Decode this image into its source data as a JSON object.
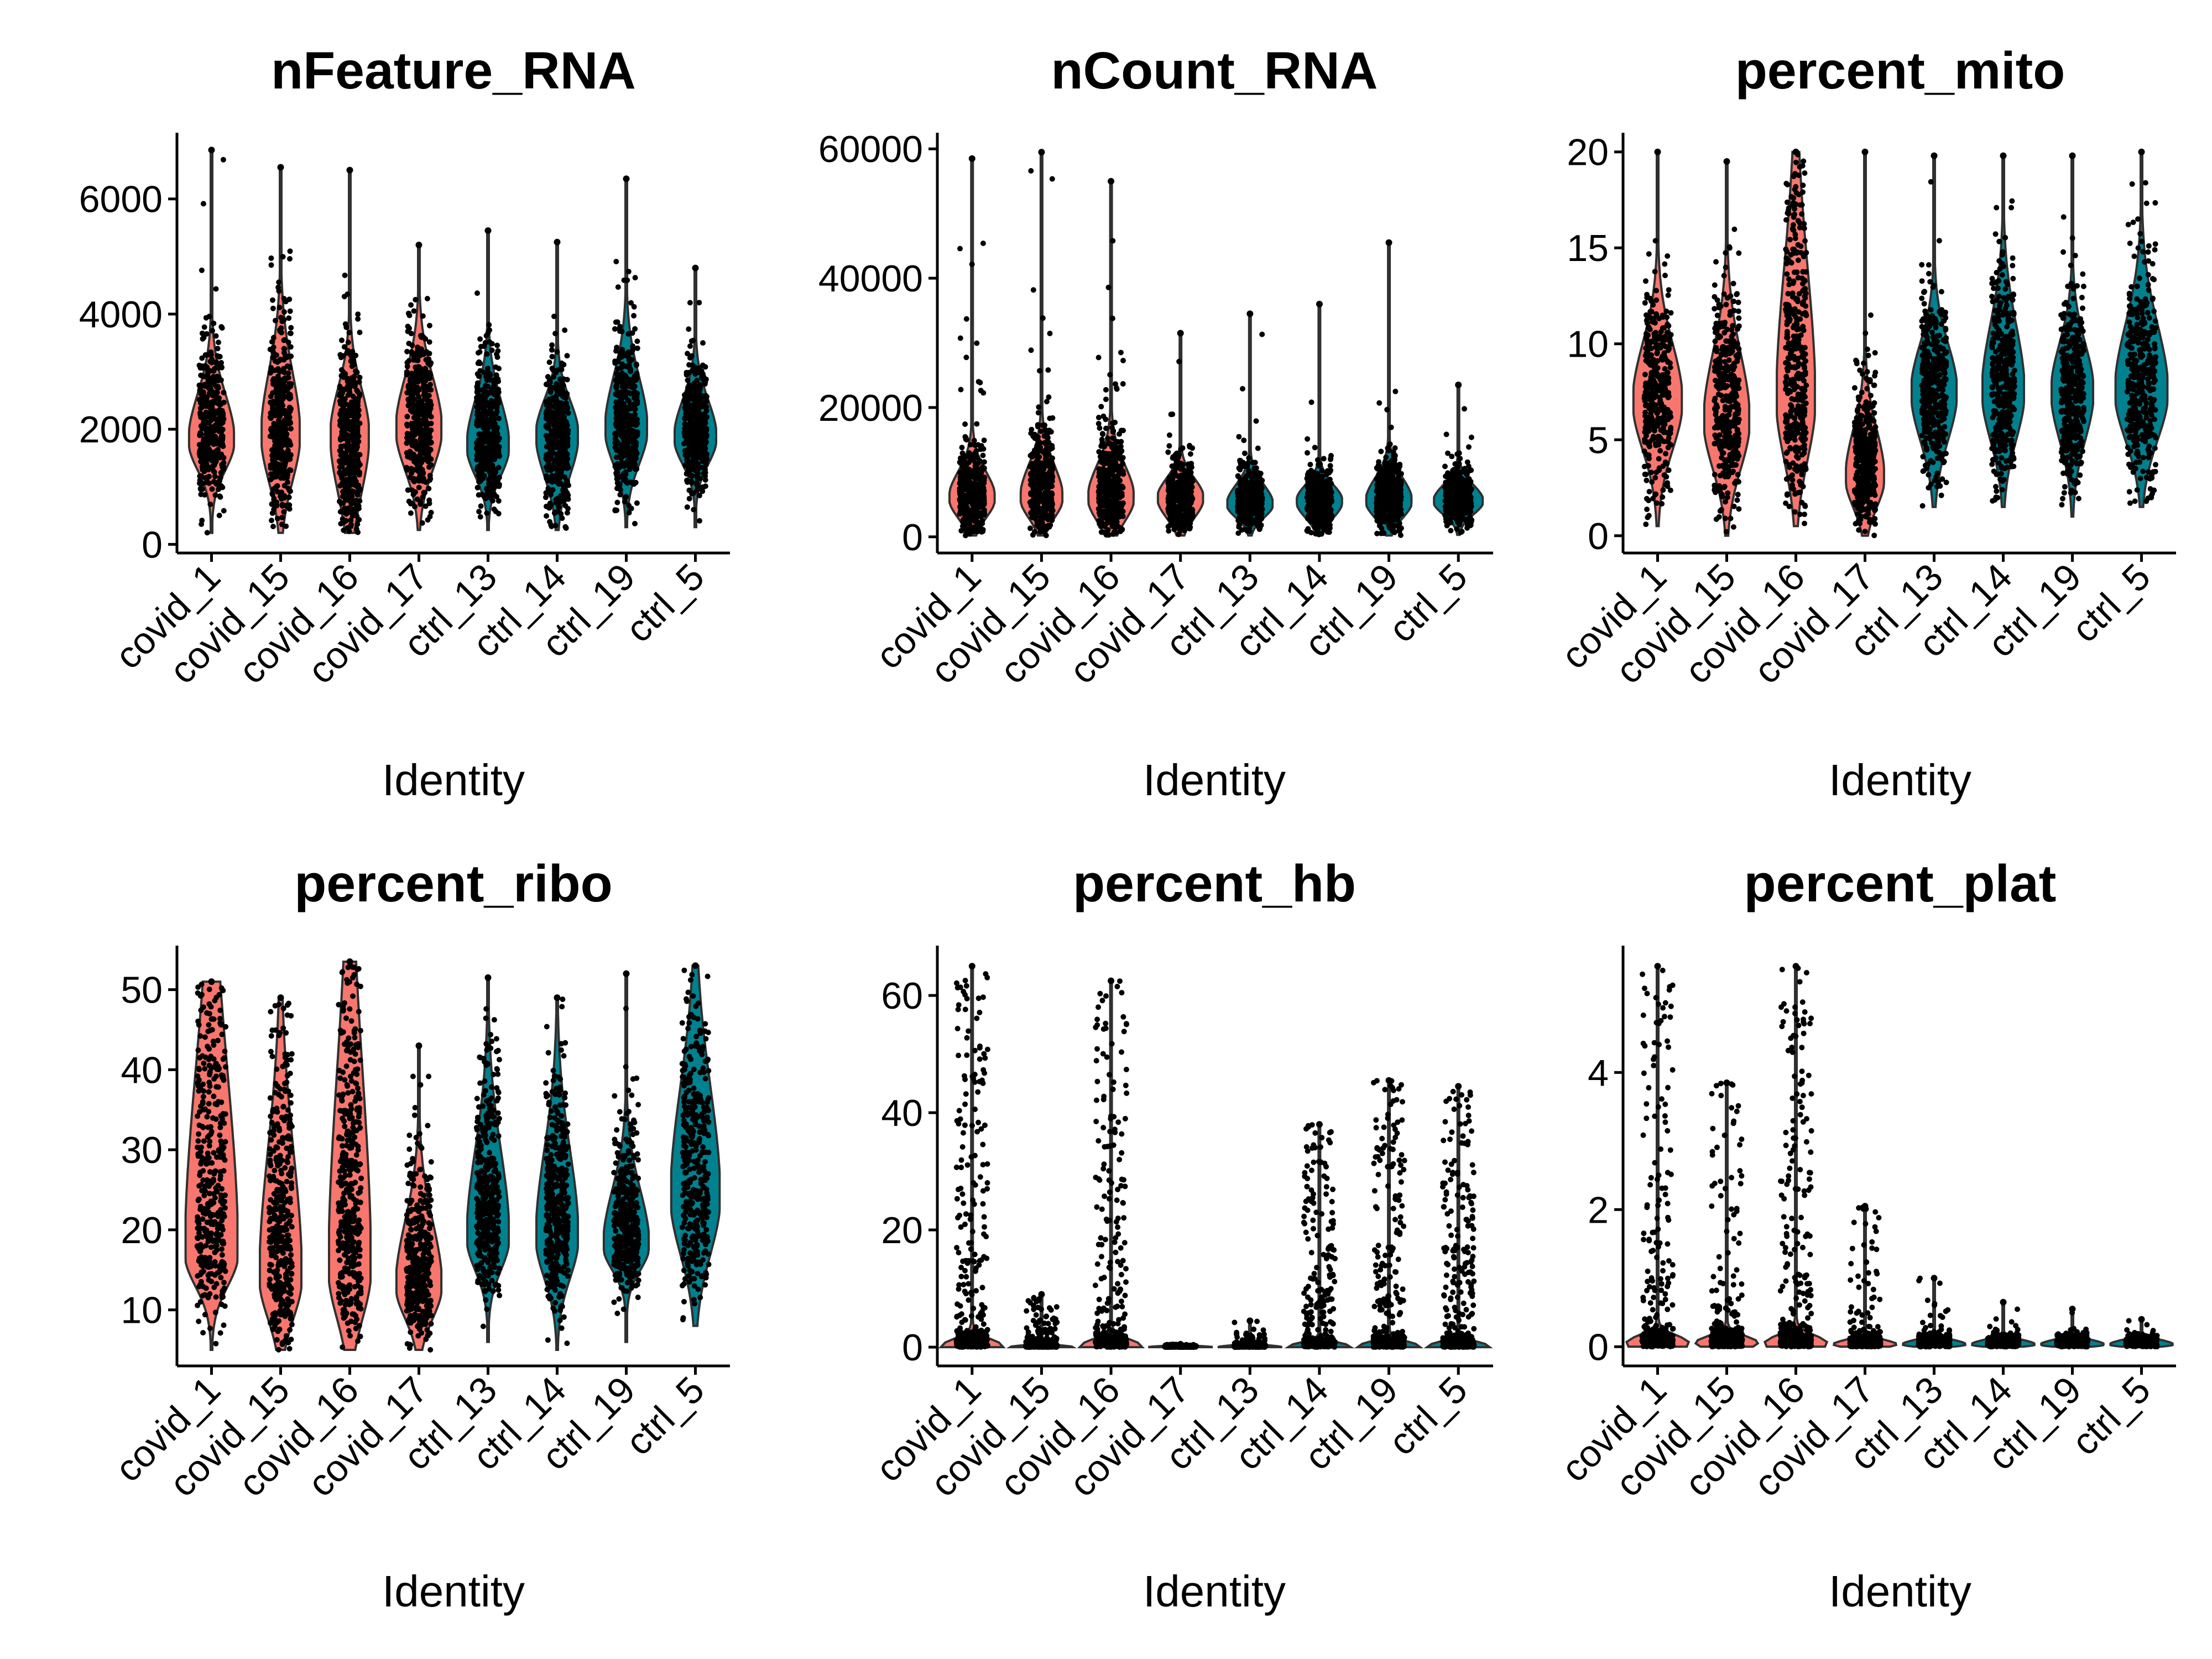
{
  "colors": {
    "covid": "#F8766D",
    "ctrl": "#00818F",
    "outline": "#303030",
    "point": "#000000",
    "axis": "#000000"
  },
  "chart_data": [
    {
      "type": "violin",
      "title": "nFeature_RNA",
      "xlabel": "Identity",
      "ylabel": "",
      "categories": [
        "covid_1",
        "covid_15",
        "covid_16",
        "covid_17",
        "ctrl_13",
        "ctrl_14",
        "ctrl_19",
        "ctrl_5"
      ],
      "group": [
        "covid",
        "covid",
        "covid",
        "covid",
        "ctrl",
        "ctrl",
        "ctrl",
        "ctrl"
      ],
      "ylim": [
        -150,
        7150
      ],
      "yticks": [
        0,
        2000,
        4000,
        6000
      ],
      "series": [
        {
          "name": "covid_1",
          "min": 200,
          "mode": 1800,
          "q1": 1300,
          "q3": 2600,
          "max": 6850,
          "width": 0.65
        },
        {
          "name": "covid_15",
          "min": 200,
          "mode": 1900,
          "q1": 1100,
          "q3": 3000,
          "max": 6550,
          "width": 0.55
        },
        {
          "name": "covid_16",
          "min": 200,
          "mode": 1900,
          "q1": 900,
          "q3": 2700,
          "max": 6500,
          "width": 0.55
        },
        {
          "name": "covid_17",
          "min": 250,
          "mode": 2000,
          "q1": 1300,
          "q3": 2900,
          "max": 5200,
          "width": 0.65
        },
        {
          "name": "ctrl_13",
          "min": 250,
          "mode": 1700,
          "q1": 1200,
          "q3": 2500,
          "max": 5450,
          "width": 0.6
        },
        {
          "name": "ctrl_14",
          "min": 250,
          "mode": 1900,
          "q1": 1200,
          "q3": 2500,
          "max": 5250,
          "width": 0.6
        },
        {
          "name": "ctrl_19",
          "min": 300,
          "mode": 2000,
          "q1": 1400,
          "q3": 2900,
          "max": 6350,
          "width": 0.6
        },
        {
          "name": "ctrl_5",
          "min": 300,
          "mode": 1850,
          "q1": 1400,
          "q3": 2500,
          "max": 4800,
          "width": 0.6
        }
      ]
    },
    {
      "type": "violin",
      "title": "nCount_RNA",
      "xlabel": "Identity",
      "ylabel": "",
      "categories": [
        "covid_1",
        "covid_15",
        "covid_16",
        "covid_17",
        "ctrl_13",
        "ctrl_14",
        "ctrl_19",
        "ctrl_5"
      ],
      "group": [
        "covid",
        "covid",
        "covid",
        "covid",
        "ctrl",
        "ctrl",
        "ctrl",
        "ctrl"
      ],
      "ylim": [
        -2500,
        62500
      ],
      "yticks": [
        0,
        20000,
        40000,
        60000
      ],
      "series": [
        {
          "name": "covid_1",
          "min": 200,
          "mode": 6000,
          "q1": 3000,
          "q3": 10000,
          "max": 58500,
          "width": 0.65
        },
        {
          "name": "covid_15",
          "min": 200,
          "mode": 6000,
          "q1": 3000,
          "q3": 11000,
          "max": 59500,
          "width": 0.6
        },
        {
          "name": "covid_16",
          "min": 200,
          "mode": 6000,
          "q1": 2500,
          "q3": 11000,
          "max": 55000,
          "width": 0.65
        },
        {
          "name": "covid_17",
          "min": 200,
          "mode": 6000,
          "q1": 3000,
          "q3": 9000,
          "max": 31500,
          "width": 0.65
        },
        {
          "name": "ctrl_13",
          "min": 200,
          "mode": 5000,
          "q1": 3000,
          "q3": 8000,
          "max": 34500,
          "width": 0.65
        },
        {
          "name": "ctrl_14",
          "min": 200,
          "mode": 5500,
          "q1": 3000,
          "q3": 8000,
          "max": 36000,
          "width": 0.65
        },
        {
          "name": "ctrl_19",
          "min": 200,
          "mode": 5500,
          "q1": 3000,
          "q3": 9000,
          "max": 45500,
          "width": 0.65
        },
        {
          "name": "ctrl_5",
          "min": 300,
          "mode": 5500,
          "q1": 3500,
          "q3": 8000,
          "max": 23500,
          "width": 0.7
        }
      ]
    },
    {
      "type": "violin",
      "title": "percent_mito",
      "xlabel": "Identity",
      "ylabel": "",
      "categories": [
        "covid_1",
        "covid_15",
        "covid_16",
        "covid_17",
        "ctrl_13",
        "ctrl_14",
        "ctrl_19",
        "ctrl_5"
      ],
      "group": [
        "covid",
        "covid",
        "covid",
        "covid",
        "ctrl",
        "ctrl",
        "ctrl",
        "ctrl"
      ],
      "ylim": [
        -0.9,
        21
      ],
      "yticks": [
        0,
        5,
        10,
        15,
        20
      ],
      "series": [
        {
          "name": "covid_1",
          "min": 0.5,
          "mode": 7,
          "q1": 4.5,
          "q3": 10,
          "max": 20,
          "width": 0.7
        },
        {
          "name": "covid_15",
          "min": 0,
          "mode": 6,
          "q1": 3.5,
          "q3": 9.5,
          "max": 19.5,
          "width": 0.65
        },
        {
          "name": "covid_16",
          "min": 0.5,
          "mode": 7,
          "q1": 4,
          "q3": 14,
          "max": 20,
          "width": 0.55
        },
        {
          "name": "covid_17",
          "min": 0,
          "mode": 3,
          "q1": 1.5,
          "q3": 5.5,
          "max": 20,
          "width": 0.55
        },
        {
          "name": "ctrl_13",
          "min": 1.5,
          "mode": 7.5,
          "q1": 5,
          "q3": 10,
          "max": 19.8,
          "width": 0.65
        },
        {
          "name": "ctrl_14",
          "min": 1.5,
          "mode": 7.5,
          "q1": 5,
          "q3": 11,
          "max": 19.8,
          "width": 0.6
        },
        {
          "name": "ctrl_19",
          "min": 1,
          "mode": 7.5,
          "q1": 5,
          "q3": 10,
          "max": 19.8,
          "width": 0.6
        },
        {
          "name": "ctrl_5",
          "min": 1.5,
          "mode": 7.5,
          "q1": 5,
          "q3": 11,
          "max": 20,
          "width": 0.75
        }
      ]
    },
    {
      "type": "violin",
      "title": "percent_ribo",
      "xlabel": "Identity",
      "ylabel": "",
      "categories": [
        "covid_1",
        "covid_15",
        "covid_16",
        "covid_17",
        "ctrl_13",
        "ctrl_14",
        "ctrl_19",
        "ctrl_5"
      ],
      "group": [
        "covid",
        "covid",
        "covid",
        "covid",
        "ctrl",
        "ctrl",
        "ctrl",
        "ctrl"
      ],
      "ylim": [
        3,
        55.5
      ],
      "yticks": [
        10,
        20,
        30,
        40,
        50
      ],
      "series": [
        {
          "name": "covid_1",
          "min": 5,
          "mode": 17,
          "q1": 13,
          "q3": 40,
          "max": 51,
          "width": 0.75
        },
        {
          "name": "covid_15",
          "min": 5,
          "mode": 14,
          "q1": 9,
          "q3": 30,
          "max": 49,
          "width": 0.6
        },
        {
          "name": "covid_16",
          "min": 5,
          "mode": 15,
          "q1": 9,
          "q3": 40,
          "max": 53.5,
          "width": 0.6
        },
        {
          "name": "covid_17",
          "min": 5,
          "mode": 13,
          "q1": 9,
          "q3": 21,
          "max": 43,
          "width": 0.65
        },
        {
          "name": "ctrl_13",
          "min": 6,
          "mode": 19,
          "q1": 15,
          "q3": 30,
          "max": 51.5,
          "width": 0.6
        },
        {
          "name": "ctrl_14",
          "min": 5,
          "mode": 19,
          "q1": 14,
          "q3": 30,
          "max": 49,
          "width": 0.6
        },
        {
          "name": "ctrl_19",
          "min": 6,
          "mode": 18,
          "q1": 15,
          "q3": 25,
          "max": 52,
          "width": 0.65
        },
        {
          "name": "ctrl_5",
          "min": 8,
          "mode": 24,
          "q1": 17,
          "q3": 38,
          "max": 53,
          "width": 0.7
        }
      ]
    },
    {
      "type": "violin",
      "title": "percent_hb",
      "xlabel": "Identity",
      "ylabel": "",
      "categories": [
        "covid_1",
        "covid_15",
        "covid_16",
        "covid_17",
        "ctrl_13",
        "ctrl_14",
        "ctrl_19",
        "ctrl_5"
      ],
      "group": [
        "covid",
        "covid",
        "covid",
        "covid",
        "ctrl",
        "ctrl",
        "ctrl",
        "ctrl"
      ],
      "ylim": [
        -3.2,
        68.5
      ],
      "yticks": [
        0,
        20,
        40,
        60
      ],
      "series": [
        {
          "name": "covid_1",
          "min": 0,
          "mode": 0,
          "q1": 0,
          "q3": 0.5,
          "max": 65,
          "width": 0.9
        },
        {
          "name": "covid_15",
          "min": 0,
          "mode": 0,
          "q1": 0,
          "q3": 0.3,
          "max": 9,
          "width": 0.9
        },
        {
          "name": "covid_16",
          "min": 0,
          "mode": 0,
          "q1": 0,
          "q3": 0.5,
          "max": 62.5,
          "width": 0.9
        },
        {
          "name": "covid_17",
          "min": 0,
          "mode": 0,
          "q1": 0,
          "q3": 0.2,
          "max": 0.5,
          "width": 0.9
        },
        {
          "name": "ctrl_13",
          "min": 0,
          "mode": 0,
          "q1": 0,
          "q3": 0.3,
          "max": 4.5,
          "width": 0.9
        },
        {
          "name": "ctrl_14",
          "min": 0,
          "mode": 0,
          "q1": 0,
          "q3": 0.5,
          "max": 38,
          "width": 0.9
        },
        {
          "name": "ctrl_19",
          "min": 0,
          "mode": 0,
          "q1": 0,
          "q3": 0.5,
          "max": 45.5,
          "width": 0.9
        },
        {
          "name": "ctrl_5",
          "min": 0,
          "mode": 0,
          "q1": 0,
          "q3": 0.5,
          "max": 44.5,
          "width": 0.9
        }
      ]
    },
    {
      "type": "violin",
      "title": "percent_plat",
      "xlabel": "Identity",
      "ylabel": "",
      "categories": [
        "covid_1",
        "covid_15",
        "covid_16",
        "covid_17",
        "ctrl_13",
        "ctrl_14",
        "ctrl_19",
        "ctrl_5"
      ],
      "group": [
        "covid",
        "covid",
        "covid",
        "covid",
        "ctrl",
        "ctrl",
        "ctrl",
        "ctrl"
      ],
      "ylim": [
        -0.28,
        5.85
      ],
      "yticks": [
        0,
        2,
        4
      ],
      "series": [
        {
          "name": "covid_1",
          "min": 0,
          "mode": 0.05,
          "q1": 0,
          "q3": 0.15,
          "max": 5.55,
          "width": 0.9
        },
        {
          "name": "covid_15",
          "min": 0,
          "mode": 0.05,
          "q1": 0,
          "q3": 0.15,
          "max": 3.85,
          "width": 0.9
        },
        {
          "name": "covid_16",
          "min": 0,
          "mode": 0.05,
          "q1": 0,
          "q3": 0.15,
          "max": 5.55,
          "width": 0.9
        },
        {
          "name": "covid_17",
          "min": 0,
          "mode": 0.03,
          "q1": 0,
          "q3": 0.1,
          "max": 2.05,
          "width": 0.9
        },
        {
          "name": "ctrl_13",
          "min": 0,
          "mode": 0.03,
          "q1": 0,
          "q3": 0.1,
          "max": 1.0,
          "width": 0.9
        },
        {
          "name": "ctrl_14",
          "min": 0,
          "mode": 0.03,
          "q1": 0,
          "q3": 0.1,
          "max": 0.65,
          "width": 0.9
        },
        {
          "name": "ctrl_19",
          "min": 0,
          "mode": 0.03,
          "q1": 0,
          "q3": 0.1,
          "max": 0.55,
          "width": 0.9
        },
        {
          "name": "ctrl_5",
          "min": 0,
          "mode": 0.03,
          "q1": 0,
          "q3": 0.1,
          "max": 0.4,
          "width": 0.9
        }
      ]
    }
  ]
}
